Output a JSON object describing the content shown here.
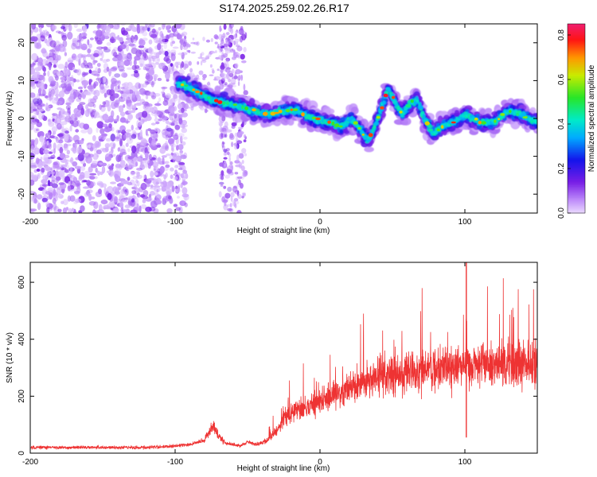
{
  "title": "S174.2025.259.02.26.R17",
  "chart_data": [
    {
      "type": "heatmap",
      "title": "",
      "xlabel": "Height of straight line (km)",
      "ylabel": "Frequency (Hz)",
      "xlim": [
        -200,
        150
      ],
      "ylim": [
        -25,
        25
      ],
      "xticks": [
        "-200",
        "-100",
        "0",
        "100"
      ],
      "xtick_values": [
        -200,
        -100,
        0,
        100
      ],
      "yticks": [
        "-20",
        "-10",
        "0",
        "10",
        "20"
      ],
      "ytick_values": [
        -20,
        -10,
        0,
        10,
        20
      ],
      "colorbar": {
        "label": "Normalized spectral amplitude",
        "range": [
          0,
          0.85
        ],
        "ticks": [
          "0.0",
          "0.2",
          "0.4",
          "0.6",
          "0.8"
        ],
        "tick_values": [
          0,
          0.2,
          0.4,
          0.6,
          0.8
        ]
      },
      "ridge": {
        "name": "spectral peak frequency",
        "x": [
          -95,
          -85,
          -75,
          -65,
          -55,
          -45,
          -35,
          -25,
          -15,
          -5,
          5,
          15,
          22,
          28,
          33,
          38,
          43,
          47,
          52,
          57,
          62,
          67,
          72,
          78,
          85,
          92,
          100,
          110,
          120,
          130,
          140,
          148
        ],
        "y": [
          9,
          7,
          5,
          4,
          3,
          2,
          1,
          2,
          2,
          0,
          -1,
          -2,
          0,
          -3,
          -6,
          -2,
          3,
          8,
          4,
          1,
          4,
          5,
          0,
          -4,
          -2,
          -1,
          1,
          -1,
          -1,
          2,
          1,
          -1
        ]
      }
    },
    {
      "type": "line",
      "title": "",
      "xlabel": "Height of straight line (km)",
      "ylabel": "SNR (10 * v/v)",
      "xlim": [
        -200,
        150
      ],
      "ylim": [
        0,
        670
      ],
      "xticks": [
        "-200",
        "-100",
        "0",
        "100"
      ],
      "xtick_values": [
        -200,
        -100,
        0,
        100
      ],
      "yticks": [
        "0",
        "200",
        "400",
        "600"
      ],
      "ytick_values": [
        0,
        200,
        400,
        600
      ],
      "series": [
        {
          "name": "SNR",
          "color": "#ee3333",
          "x": [
            -200,
            -180,
            -160,
            -140,
            -120,
            -100,
            -90,
            -80,
            -74,
            -70,
            -65,
            -60,
            -55,
            -50,
            -45,
            -40,
            -35,
            -30,
            -25,
            -20,
            -10,
            0,
            10,
            20,
            30,
            40,
            50,
            60,
            70,
            80,
            90,
            100,
            110,
            120,
            130,
            140,
            150
          ],
          "values": [
            20,
            20,
            20,
            20,
            20,
            25,
            30,
            45,
            100,
            60,
            35,
            30,
            25,
            40,
            30,
            35,
            50,
            80,
            120,
            140,
            160,
            180,
            200,
            230,
            250,
            260,
            270,
            280,
            285,
            290,
            300,
            305,
            310,
            315,
            320,
            320,
            310
          ]
        }
      ],
      "annotations": [
        {
          "x": 101,
          "value": 670,
          "note": "spike"
        },
        {
          "x": 101,
          "value": 55,
          "note": "dip"
        }
      ]
    }
  ]
}
